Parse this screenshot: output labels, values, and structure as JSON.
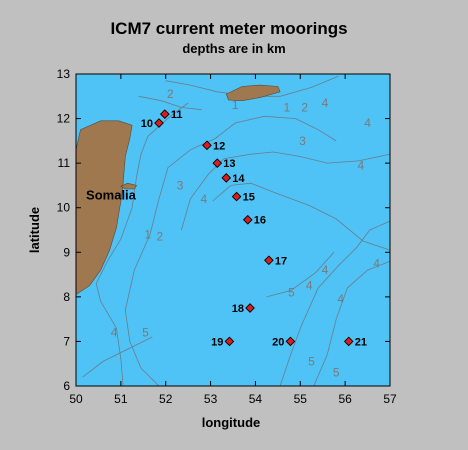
{
  "chart_data": {
    "type": "scatter",
    "title": "ICM7 current meter moorings",
    "subtitle": "depths are in km",
    "xlabel": "longitude",
    "ylabel": "latitude",
    "xlim": [
      50,
      57
    ],
    "ylim": [
      6,
      13
    ],
    "xticks": [
      "50",
      "51",
      "52",
      "53",
      "54",
      "55",
      "56",
      "57"
    ],
    "yticks": [
      "6",
      "7",
      "8",
      "9",
      "10",
      "11",
      "12",
      "13"
    ],
    "grid": false,
    "colors": {
      "ocean": "#4fc3f5",
      "land": "#a07850",
      "marker": "#d81e1e",
      "contour": "#6a7d8e"
    },
    "land_label": "Somalia",
    "moorings": [
      {
        "label": "10",
        "x": 51.85,
        "y": 11.9
      },
      {
        "label": "11",
        "x": 51.98,
        "y": 12.1
      },
      {
        "label": "12",
        "x": 52.92,
        "y": 11.4
      },
      {
        "label": "13",
        "x": 53.15,
        "y": 11.0
      },
      {
        "label": "14",
        "x": 53.35,
        "y": 10.67
      },
      {
        "label": "15",
        "x": 53.58,
        "y": 10.25
      },
      {
        "label": "16",
        "x": 53.83,
        "y": 9.73
      },
      {
        "label": "17",
        "x": 54.3,
        "y": 8.82
      },
      {
        "label": "18",
        "x": 53.88,
        "y": 7.75
      },
      {
        "label": "19",
        "x": 53.42,
        "y": 7.0
      },
      {
        "label": "20",
        "x": 54.78,
        "y": 7.0
      },
      {
        "label": "21",
        "x": 56.08,
        "y": 7.0
      }
    ],
    "depth_labels": [
      {
        "label": "2",
        "x": 52.1,
        "y": 12.55
      },
      {
        "label": "1",
        "x": 53.55,
        "y": 12.3
      },
      {
        "label": "1",
        "x": 54.7,
        "y": 12.25
      },
      {
        "label": "2",
        "x": 55.1,
        "y": 12.25
      },
      {
        "label": "4",
        "x": 55.55,
        "y": 12.35
      },
      {
        "label": "4",
        "x": 56.5,
        "y": 11.9
      },
      {
        "label": "3",
        "x": 55.05,
        "y": 11.5
      },
      {
        "label": "4",
        "x": 56.35,
        "y": 10.95
      },
      {
        "label": "3",
        "x": 52.32,
        "y": 10.5
      },
      {
        "label": "4",
        "x": 52.85,
        "y": 10.2
      },
      {
        "label": "1",
        "x": 51.6,
        "y": 9.4
      },
      {
        "label": "2",
        "x": 51.87,
        "y": 9.35
      },
      {
        "label": "4",
        "x": 56.7,
        "y": 8.75
      },
      {
        "label": "4",
        "x": 55.55,
        "y": 8.6
      },
      {
        "label": "4",
        "x": 55.2,
        "y": 8.25
      },
      {
        "label": "5",
        "x": 54.8,
        "y": 8.1
      },
      {
        "label": "4",
        "x": 55.9,
        "y": 7.95
      },
      {
        "label": "4",
        "x": 50.85,
        "y": 7.2
      },
      {
        "label": "5",
        "x": 51.55,
        "y": 7.2
      },
      {
        "label": "5",
        "x": 55.25,
        "y": 6.55
      },
      {
        "label": "5",
        "x": 55.8,
        "y": 6.3
      }
    ]
  }
}
